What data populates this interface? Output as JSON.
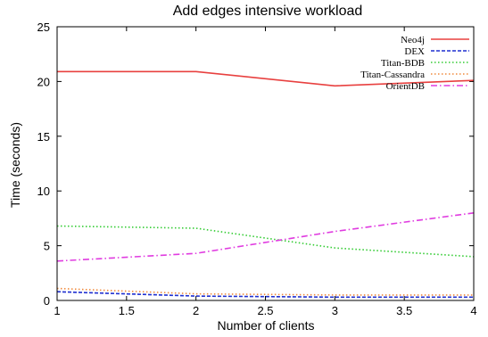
{
  "chart_data": {
    "type": "line",
    "title": "Add edges intensive workload",
    "xlabel": "Number of clients",
    "ylabel": "Time (seconds)",
    "xlim": [
      1,
      4
    ],
    "ylim": [
      0,
      25
    ],
    "x_ticks": [
      "1",
      "1.5",
      "2",
      "2.5",
      "3",
      "3.5",
      "4"
    ],
    "y_ticks": [
      "0",
      "5",
      "10",
      "15",
      "20",
      "25"
    ],
    "grid": false,
    "legend_position": "top-right",
    "x": [
      1,
      2,
      3,
      4
    ],
    "series": [
      {
        "name": "Neo4j",
        "values": [
          20.9,
          20.9,
          19.6,
          20.1
        ],
        "color": "#e8403f",
        "style": "solid"
      },
      {
        "name": "DEX",
        "values": [
          0.8,
          0.4,
          0.3,
          0.3
        ],
        "color": "#1f2fd0",
        "style": "dashed"
      },
      {
        "name": "Titan-BDB",
        "values": [
          6.8,
          6.6,
          4.8,
          4.0
        ],
        "color": "#33cc33",
        "style": "dotted"
      },
      {
        "name": "Titan-Cassandra",
        "values": [
          1.1,
          0.6,
          0.5,
          0.5
        ],
        "color": "#f08a3c",
        "style": "dotted"
      },
      {
        "name": "OrientDB",
        "values": [
          3.6,
          4.3,
          6.3,
          8.0
        ],
        "color": "#e03ce0",
        "style": "dashdot"
      }
    ]
  }
}
